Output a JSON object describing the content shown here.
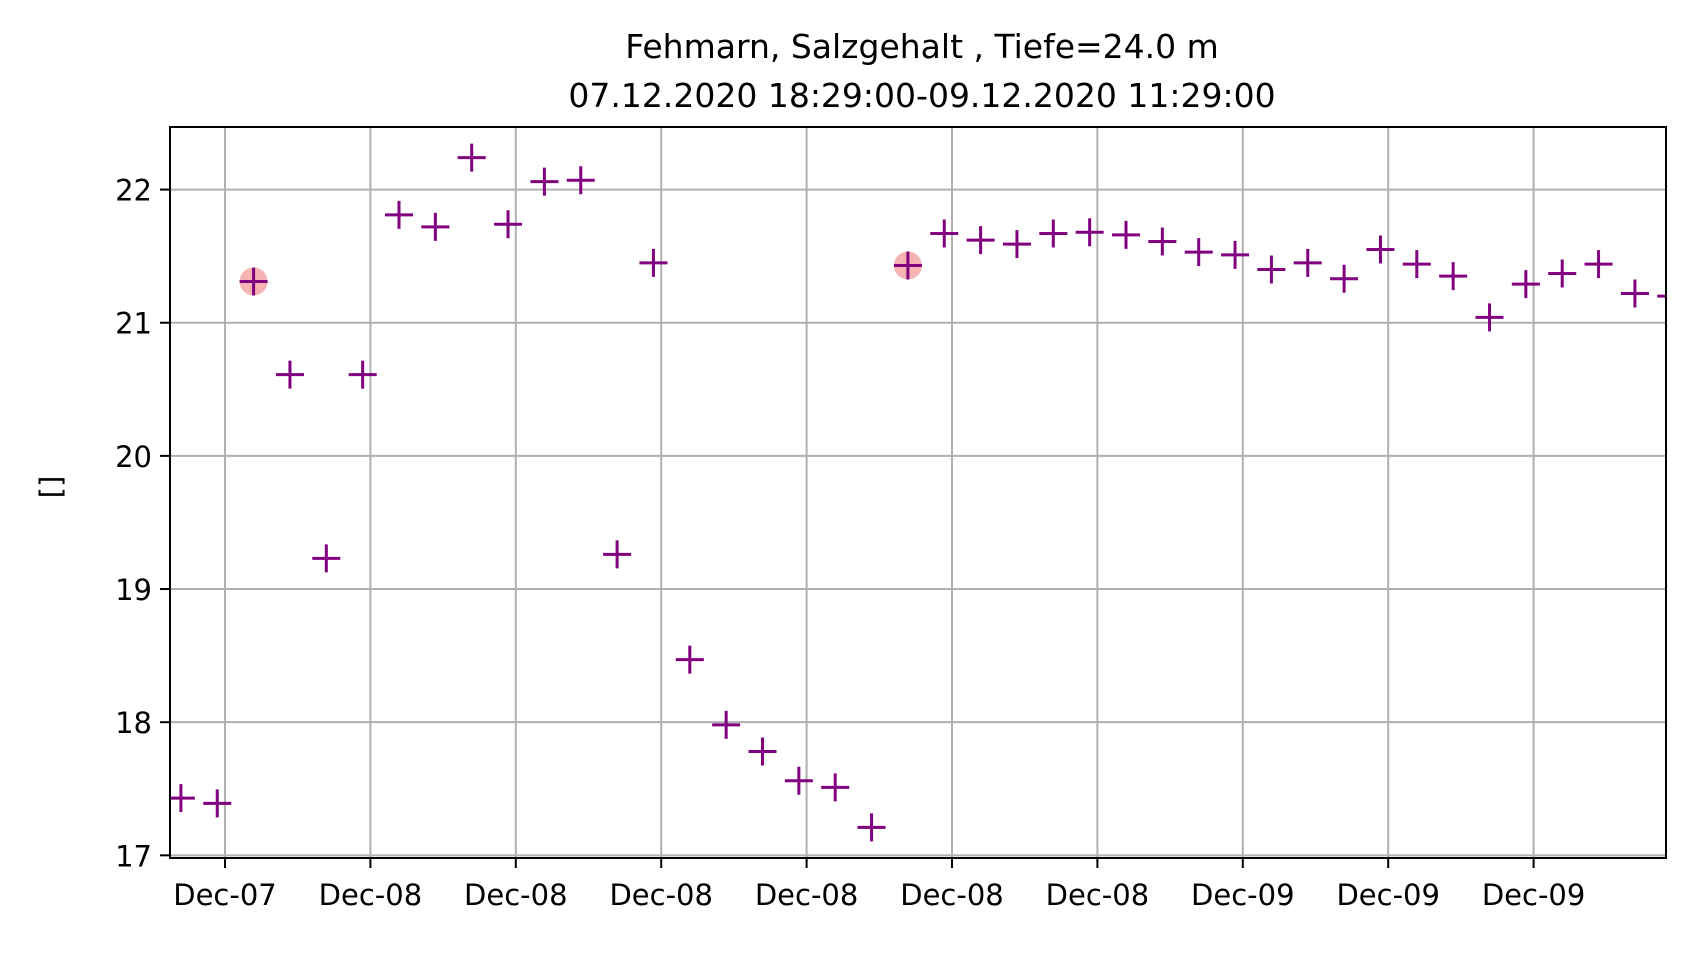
{
  "chart_data": {
    "type": "scatter",
    "title": "Fehmarn, Salzgehalt , Tiefe=24.0 m",
    "subtitle": "07.12.2020 18:29:00-09.12.2020 11:29:00",
    "xlabel": "",
    "ylabel": "[]",
    "x_tick_labels": [
      "Dec-07",
      "Dec-08",
      "Dec-08",
      "Dec-08",
      "Dec-08",
      "Dec-08",
      "Dec-08",
      "Dec-09",
      "Dec-09",
      "Dec-09"
    ],
    "y_ticks": [
      17,
      18,
      19,
      20,
      21,
      22
    ],
    "ylim": [
      16.98,
      22.47
    ],
    "grid": true,
    "marker": "+",
    "marker_color": "#800080",
    "highlight_color": "#f4a0a0",
    "x": [
      "2020-12-07 18:29",
      "2020-12-07 19:29",
      "2020-12-07 20:29",
      "2020-12-07 21:29",
      "2020-12-07 22:29",
      "2020-12-07 23:29",
      "2020-12-08 00:29",
      "2020-12-08 01:29",
      "2020-12-08 02:29",
      "2020-12-08 03:29",
      "2020-12-08 04:29",
      "2020-12-08 05:29",
      "2020-12-08 06:29",
      "2020-12-08 07:29",
      "2020-12-08 08:29",
      "2020-12-08 09:29",
      "2020-12-08 10:29",
      "2020-12-08 11:29",
      "2020-12-08 12:29",
      "2020-12-08 13:29",
      "2020-12-08 14:29",
      "2020-12-08 15:29",
      "2020-12-08 16:29",
      "2020-12-08 17:29",
      "2020-12-08 18:29",
      "2020-12-08 19:29",
      "2020-12-08 20:29",
      "2020-12-08 21:29",
      "2020-12-08 22:29",
      "2020-12-08 23:29",
      "2020-12-09 00:29",
      "2020-12-09 01:29",
      "2020-12-09 02:29",
      "2020-12-09 03:29",
      "2020-12-09 04:29",
      "2020-12-09 05:29",
      "2020-12-09 06:29",
      "2020-12-09 07:29",
      "2020-12-09 08:29",
      "2020-12-09 09:29",
      "2020-12-09 10:29",
      "2020-12-09 11:29"
    ],
    "values": [
      17.43,
      17.39,
      21.31,
      20.61,
      19.23,
      20.61,
      21.81,
      21.72,
      22.24,
      21.74,
      22.06,
      22.07,
      19.26,
      21.45,
      18.47,
      17.98,
      17.78,
      17.56,
      17.51,
      17.21,
      21.43,
      21.67,
      21.62,
      21.59,
      21.67,
      21.68,
      21.66,
      21.61,
      21.53,
      21.51,
      21.4,
      21.45,
      21.33,
      21.55,
      21.44,
      21.35,
      21.04,
      21.29,
      21.37,
      21.44,
      21.22,
      21.2
    ],
    "highlighted_x": [
      "2020-12-07 20:29",
      "2020-12-08 14:29"
    ]
  }
}
